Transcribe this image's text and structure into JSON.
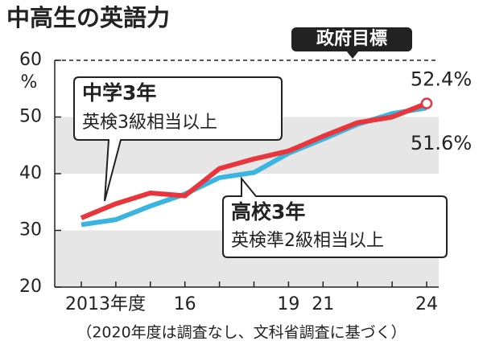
{
  "chart_data": {
    "type": "line",
    "title": "中高生の英語力",
    "y_unit": "%",
    "note": "（2020年度は調査なし、文科省調査に基づく）",
    "target": {
      "label": "政府目標",
      "value": 60
    },
    "categories": [
      "2013年度",
      null,
      null,
      "16",
      null,
      null,
      "19",
      "21",
      null,
      null,
      "24"
    ],
    "series": [
      {
        "name": "中学3年",
        "description": "英検3級相当以上",
        "color": "#e8363c",
        "values": [
          32.2,
          34.7,
          36.6,
          36.1,
          40.9,
          42.6,
          44.0,
          46.6,
          49.0,
          50.0,
          52.4
        ],
        "value_labels": [
          null,
          null,
          null,
          null,
          null,
          null,
          null,
          null,
          null,
          null,
          "52.4%"
        ]
      },
      {
        "name": "高校3年",
        "description": "英検準2級相当以上",
        "color": "#3ab4e0",
        "values": [
          31.0,
          31.9,
          34.3,
          36.4,
          39.3,
          40.2,
          43.6,
          46.1,
          48.7,
          50.6,
          51.6
        ],
        "value_labels": [
          null,
          null,
          null,
          null,
          null,
          null,
          null,
          null,
          null,
          null,
          "51.6%"
        ]
      }
    ],
    "ylim": [
      20,
      60
    ],
    "yticks": [
      20,
      30,
      40,
      50,
      60
    ],
    "bands": true
  }
}
